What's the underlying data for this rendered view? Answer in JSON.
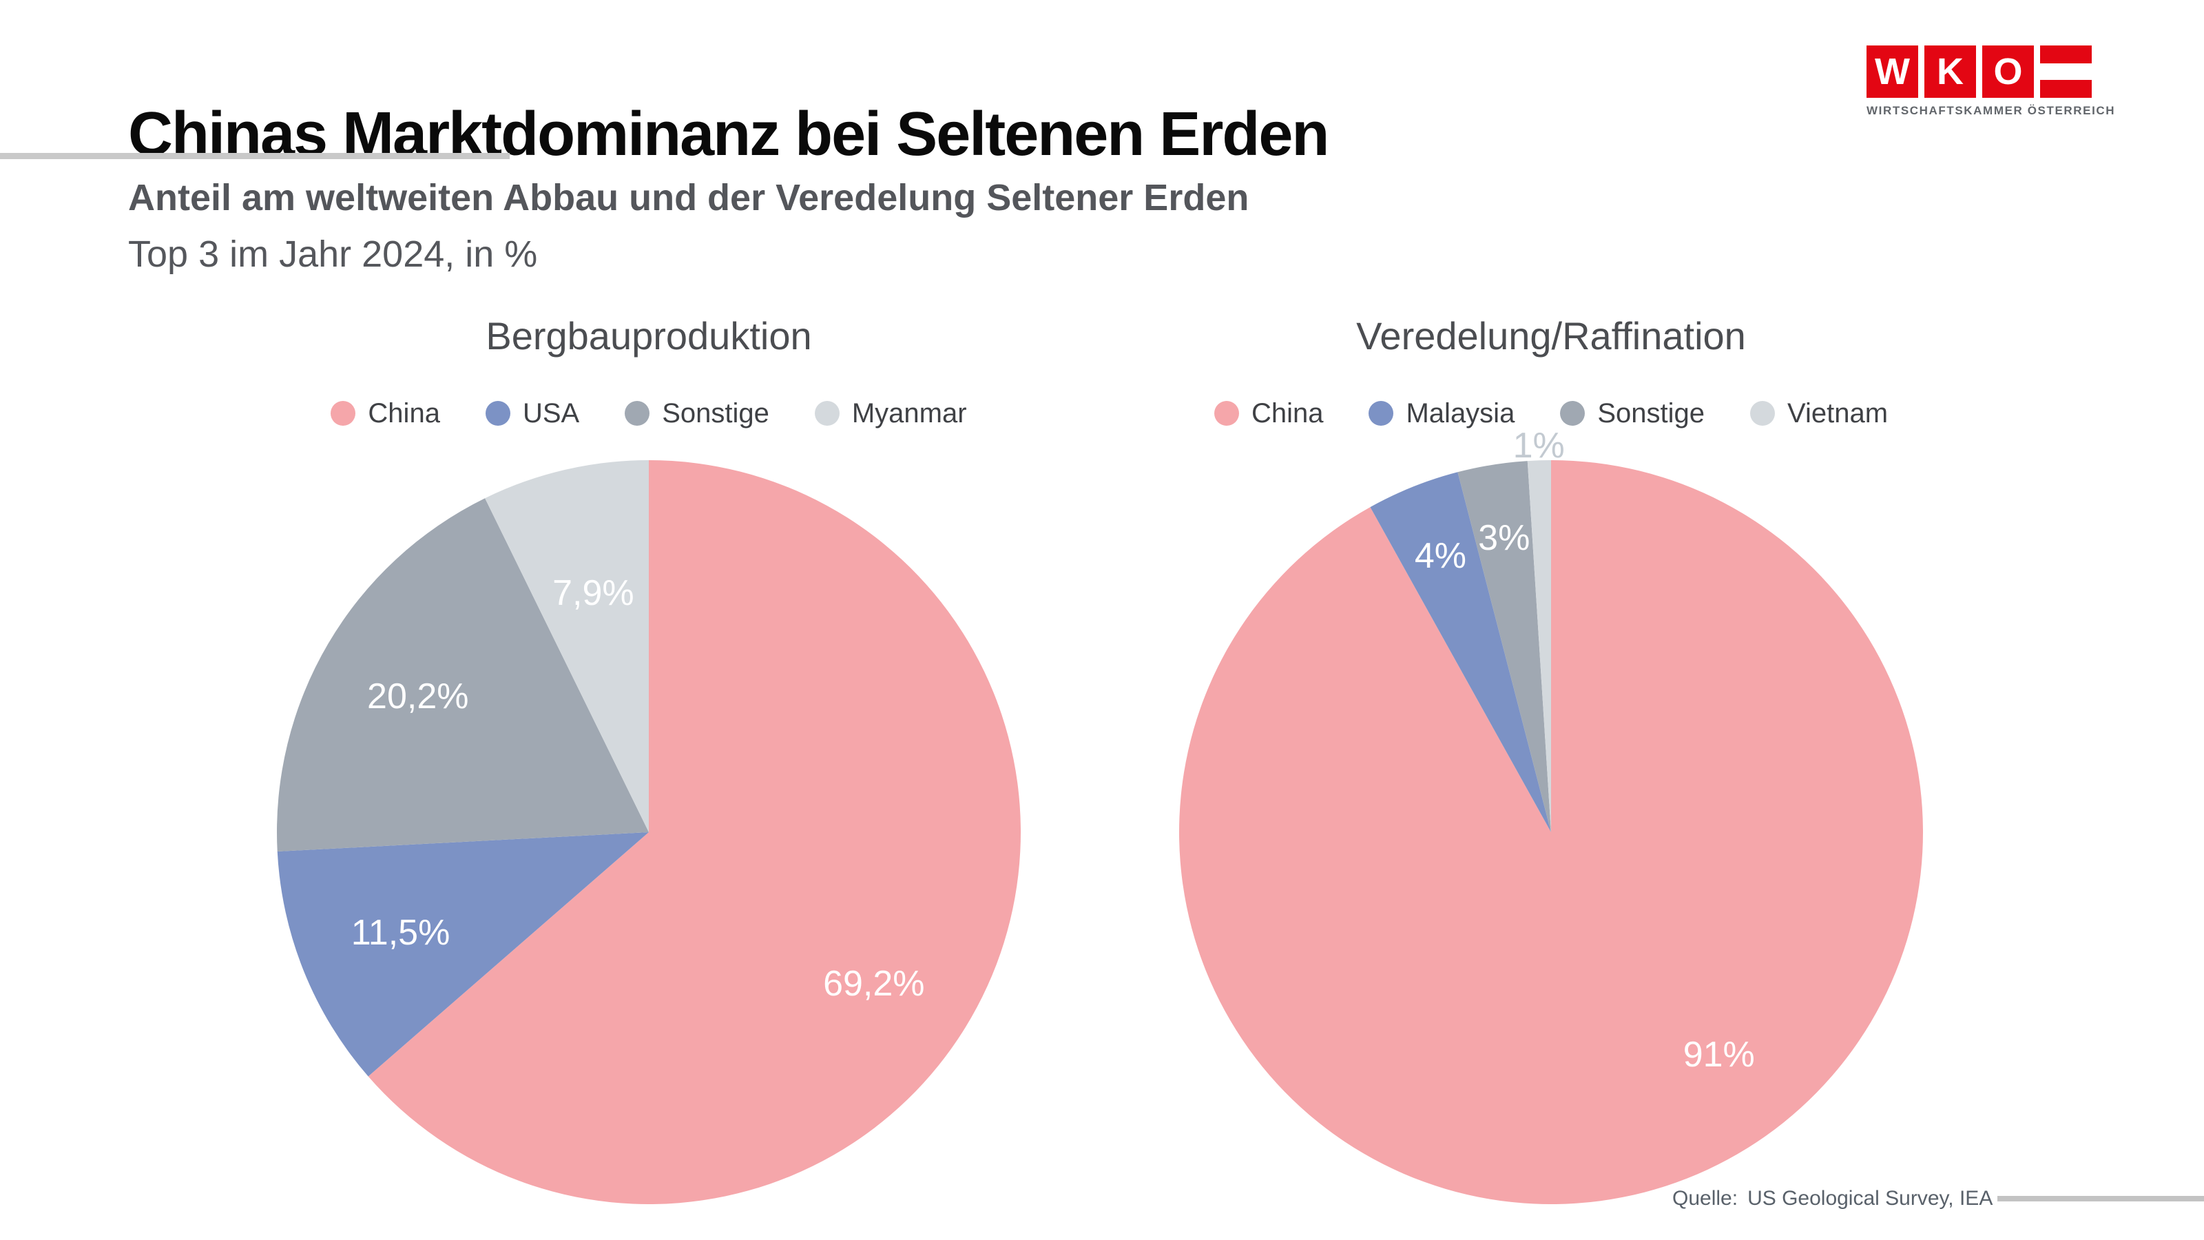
{
  "page": {
    "title": "Chinas Marktdominanz bei Seltenen Erden",
    "subtitle_bold": "Anteil am weltweiten Abbau und der Veredelung Seltener Erden",
    "subtitle_regular": "Top 3 im Jahr 2024, in %",
    "source_prefix": "Quelle:",
    "source_text": "US Geological Survey, IEA"
  },
  "logo": {
    "letters": [
      "W",
      "K",
      "O"
    ],
    "caption": "WIRTSCHAFTSKAMMER ÖSTERREICH",
    "red": "#E30613"
  },
  "colors": {
    "china_pink": "#F5A6AA",
    "second_blue": "#7C92C5",
    "sonstige_gray": "#A0A8B2",
    "light_gray": "#D4D9DD",
    "outside_label_gray": "#C3CAD1",
    "title_black": "#0A0A0A",
    "subtitle_gray": "#54565B",
    "rule_gray": "#C9C9C9"
  },
  "chart_data": [
    {
      "type": "pie",
      "title": "Bergbauproduktion",
      "unit": "%",
      "legend_position": "top",
      "start_angle_deg": 0,
      "clockwise": true,
      "slices": [
        {
          "label": "China",
          "value": 69.2,
          "display": "69,2%",
          "color": "#F5A6AA"
        },
        {
          "label": "USA",
          "value": 11.5,
          "display": "11,5%",
          "color": "#7C92C5"
        },
        {
          "label": "Sonstige",
          "value": 20.2,
          "display": "20,2%",
          "color": "#A0A8B2"
        },
        {
          "label": "Myanmar",
          "value": 7.9,
          "display": "7,9%",
          "color": "#D4D9DD"
        }
      ]
    },
    {
      "type": "pie",
      "title": "Veredelung/Raffination",
      "unit": "%",
      "legend_position": "top",
      "start_angle_deg": 0,
      "clockwise": true,
      "slices": [
        {
          "label": "China",
          "value": 91,
          "display": "91%",
          "color": "#F5A6AA"
        },
        {
          "label": "Malaysia",
          "value": 4,
          "display": "4%",
          "color": "#7C92C5"
        },
        {
          "label": "Sonstige",
          "value": 3,
          "display": "3%",
          "color": "#A0A8B2"
        },
        {
          "label": "Vietnam",
          "value": 1,
          "display": "1%",
          "color": "#D4D9DD"
        }
      ]
    }
  ]
}
